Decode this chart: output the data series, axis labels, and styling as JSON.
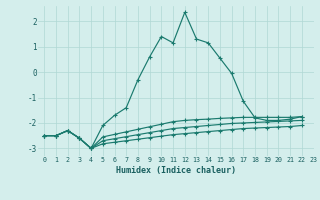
{
  "xlabel": "Humidex (Indice chaleur)",
  "background_color": "#d4eeec",
  "grid_color": "#b0d8d4",
  "line_color": "#1a7a6e",
  "xlim": [
    -0.5,
    23
  ],
  "ylim": [
    -3.3,
    2.6
  ],
  "xticks": [
    0,
    1,
    2,
    3,
    4,
    5,
    6,
    7,
    8,
    9,
    10,
    11,
    12,
    13,
    14,
    15,
    16,
    17,
    18,
    19,
    20,
    21,
    22,
    23
  ],
  "yticks": [
    -3,
    -2,
    -1,
    0,
    1,
    2
  ],
  "series": [
    {
      "x": [
        0,
        1,
        2,
        3,
        4,
        5,
        6,
        7,
        8,
        9,
        10,
        11,
        12,
        13,
        14,
        15,
        16,
        17,
        18,
        19,
        20,
        21,
        22
      ],
      "y": [
        -2.5,
        -2.5,
        -2.3,
        -2.6,
        -3.0,
        -2.1,
        -1.7,
        -1.4,
        -0.3,
        0.6,
        1.4,
        1.15,
        2.35,
        1.3,
        1.15,
        0.55,
        -0.05,
        -1.15,
        -1.8,
        -1.9,
        -1.9,
        -1.85,
        -1.75
      ]
    },
    {
      "x": [
        0,
        1,
        2,
        3,
        4,
        5,
        6,
        7,
        8,
        9,
        10,
        11,
        12,
        13,
        14,
        15,
        16,
        17,
        18,
        19,
        20,
        21,
        22
      ],
      "y": [
        -2.5,
        -2.5,
        -2.3,
        -2.6,
        -3.0,
        -2.55,
        -2.45,
        -2.35,
        -2.25,
        -2.15,
        -2.05,
        -1.95,
        -1.9,
        -1.87,
        -1.85,
        -1.82,
        -1.8,
        -1.78,
        -1.78,
        -1.78,
        -1.78,
        -1.78,
        -1.75
      ]
    },
    {
      "x": [
        0,
        1,
        2,
        3,
        4,
        5,
        6,
        7,
        8,
        9,
        10,
        11,
        12,
        13,
        14,
        15,
        16,
        17,
        18,
        19,
        20,
        21,
        22
      ],
      "y": [
        -2.5,
        -2.5,
        -2.3,
        -2.6,
        -3.0,
        -2.7,
        -2.62,
        -2.54,
        -2.46,
        -2.38,
        -2.3,
        -2.22,
        -2.18,
        -2.14,
        -2.1,
        -2.06,
        -2.02,
        -2.0,
        -1.98,
        -1.96,
        -1.94,
        -1.92,
        -1.9
      ]
    },
    {
      "x": [
        0,
        1,
        2,
        3,
        4,
        5,
        6,
        7,
        8,
        9,
        10,
        11,
        12,
        13,
        14,
        15,
        16,
        17,
        18,
        19,
        20,
        21,
        22
      ],
      "y": [
        -2.5,
        -2.5,
        -2.3,
        -2.6,
        -3.0,
        -2.82,
        -2.76,
        -2.7,
        -2.64,
        -2.58,
        -2.52,
        -2.46,
        -2.42,
        -2.38,
        -2.34,
        -2.3,
        -2.26,
        -2.22,
        -2.2,
        -2.18,
        -2.16,
        -2.14,
        -2.1
      ]
    }
  ]
}
